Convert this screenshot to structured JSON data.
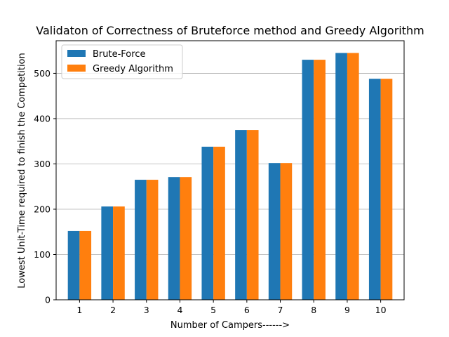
{
  "chart_data": {
    "type": "bar",
    "title": "Validaton of Correctness of Bruteforce method and Greedy Algorithm",
    "xlabel": "Number of Campers------>",
    "ylabel": "Lowest Unit-Time required to finish the Competition",
    "categories": [
      "1",
      "2",
      "3",
      "4",
      "5",
      "6",
      "7",
      "8",
      "9",
      "10"
    ],
    "series": [
      {
        "name": "Brute-Force",
        "color": "#1f77b4",
        "values": [
          152,
          206,
          265,
          271,
          338,
          375,
          302,
          530,
          545,
          488
        ]
      },
      {
        "name": "Greedy Algorithm",
        "color": "#ff7f0e",
        "values": [
          152,
          206,
          265,
          271,
          338,
          375,
          302,
          530,
          545,
          488
        ]
      }
    ],
    "ylim": [
      0,
      572
    ],
    "yticks": [
      0,
      100,
      200,
      300,
      400,
      500
    ],
    "grid": "horizontal",
    "legend_position": "top-left"
  }
}
